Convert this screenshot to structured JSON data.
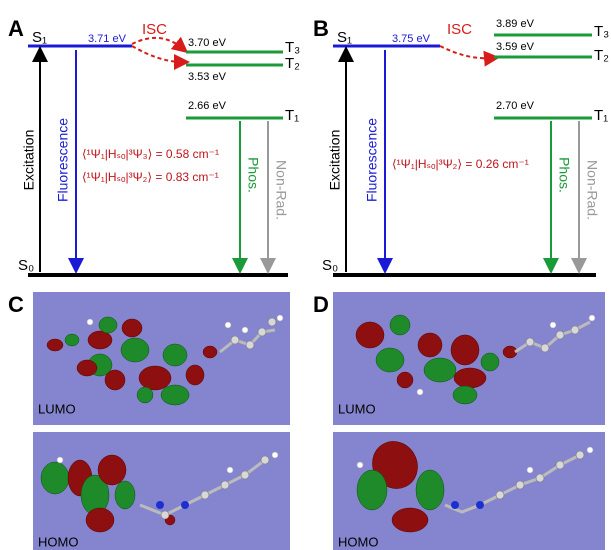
{
  "panels": [
    {
      "label": "A",
      "s0": "S₀",
      "s1": "S₁",
      "s1_energy": "3.71 eV",
      "isc": "ISC",
      "triplets": [
        {
          "name": "T₃",
          "energy": "3.70 eV"
        },
        {
          "name": "T₂",
          "energy": "3.53 eV"
        },
        {
          "name": "T₁",
          "energy": "2.66 eV"
        }
      ],
      "excitation": "Excitation",
      "fluorescence": "Fluorescence",
      "phos": "Phos.",
      "nonrad": "Non-Rad.",
      "soc": [
        "⟨¹Ψ₁|Hₛₒ|³Ψ₃⟩ = 0.58 cm⁻¹",
        "⟨¹Ψ₁|Hₛₒ|³Ψ₂⟩ = 0.83 cm⁻¹"
      ]
    },
    {
      "label": "B",
      "s0": "S₀",
      "s1": "S₁",
      "s1_energy": "3.75 eV",
      "isc": "ISC",
      "triplets": [
        {
          "name": "T₃",
          "energy": "3.89 eV"
        },
        {
          "name": "T₂",
          "energy": "3.59 eV"
        },
        {
          "name": "T₁",
          "energy": "2.70 eV"
        }
      ],
      "excitation": "Excitation",
      "fluorescence": "Fluorescence",
      "phos": "Phos.",
      "nonrad": "Non-Rad.",
      "soc": [
        "⟨¹Ψ₁|Hₛₒ|³Ψ₂⟩ = 0.26 cm⁻¹"
      ]
    },
    {
      "label": "C",
      "lumo": "LUMO",
      "homo": "HOMO"
    },
    {
      "label": "D",
      "lumo": "LUMO",
      "homo": "HOMO"
    }
  ]
}
